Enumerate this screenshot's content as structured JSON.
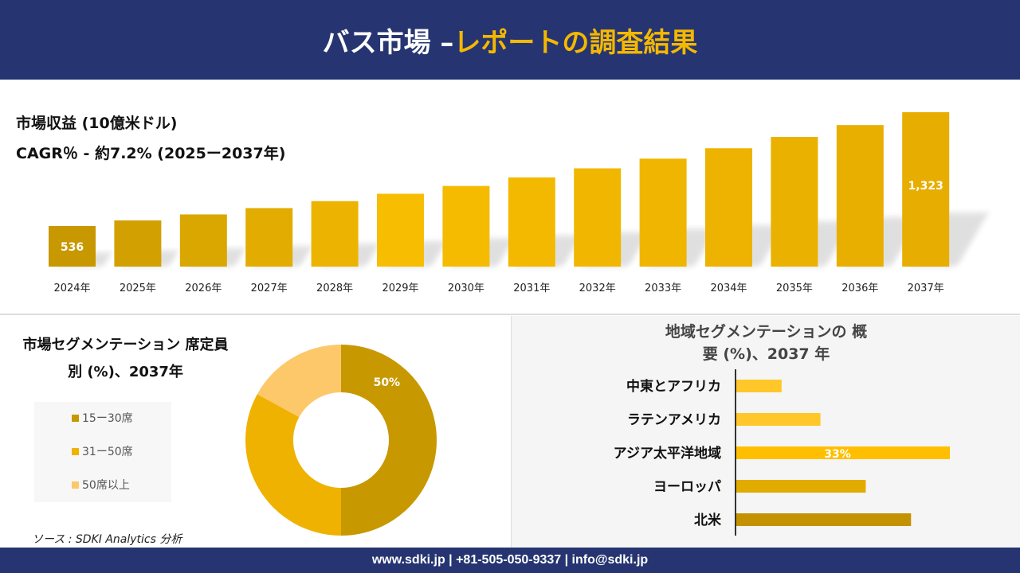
{
  "header": {
    "title_white": "バス市場 –",
    "title_accent": "レポートの調査結果"
  },
  "revenue": {
    "title": "市場収益 (10億米ドル)",
    "cagr": "CAGR％ - 約7.2% (2025ー2037年)"
  },
  "chart_data": [
    {
      "type": "bar",
      "categories": [
        "2024年",
        "2025年",
        "2026年",
        "2027年",
        "2028年",
        "2029年",
        "2030年",
        "2031年",
        "2032年",
        "2033年",
        "2034年",
        "2035年",
        "2036年",
        "2037年"
      ],
      "values": [
        536,
        575,
        616,
        660,
        708,
        759,
        813,
        872,
        935,
        1002,
        1074,
        1152,
        1234,
        1323
      ],
      "data_labels": {
        "0": "536",
        "13": "1,323"
      },
      "title": "市場収益 (10億米ドル)",
      "ylim": [
        256,
        1323
      ],
      "grid": false,
      "colors": [
        "#c89800",
        "#d2a000",
        "#daa600",
        "#e2ad00",
        "#ecb400",
        "#f7bd00",
        "#f5bb00",
        "#f3b900",
        "#f1b700",
        "#efb500",
        "#edb300",
        "#ebb100",
        "#e9af00",
        "#e7ad00"
      ]
    },
    {
      "type": "pie",
      "donut": true,
      "title": "市場セグメンテーション 席定員別 (%)、2037年",
      "categories": [
        "15ー30席",
        "31ー50席",
        "50席以上"
      ],
      "values": [
        50,
        33,
        17
      ],
      "data_labels": {
        "0": "50%"
      },
      "colors": [
        "#c89800",
        "#efb200",
        "#fdc86a"
      ],
      "legend": "left"
    },
    {
      "type": "bar",
      "orientation": "horizontal",
      "title": "地域セグメンテーションの 概要 (%)、2037 年",
      "categories": [
        "中東とアフリカ",
        "ラテンアメリカ",
        "アジア太平洋地域",
        "ヨーロッパ",
        "北米"
      ],
      "values": [
        7,
        13,
        33,
        20,
        27
      ],
      "data_labels": {
        "2": "33%"
      },
      "colors": [
        "#ffc72a",
        "#ffc72a",
        "#ffbf00",
        "#e2ab00",
        "#c49200"
      ]
    }
  ],
  "source": "ソース : SDKI Analytics 分析",
  "footer": "www.sdki.jp | +81-505-050-9337 | info@sdki.jp"
}
